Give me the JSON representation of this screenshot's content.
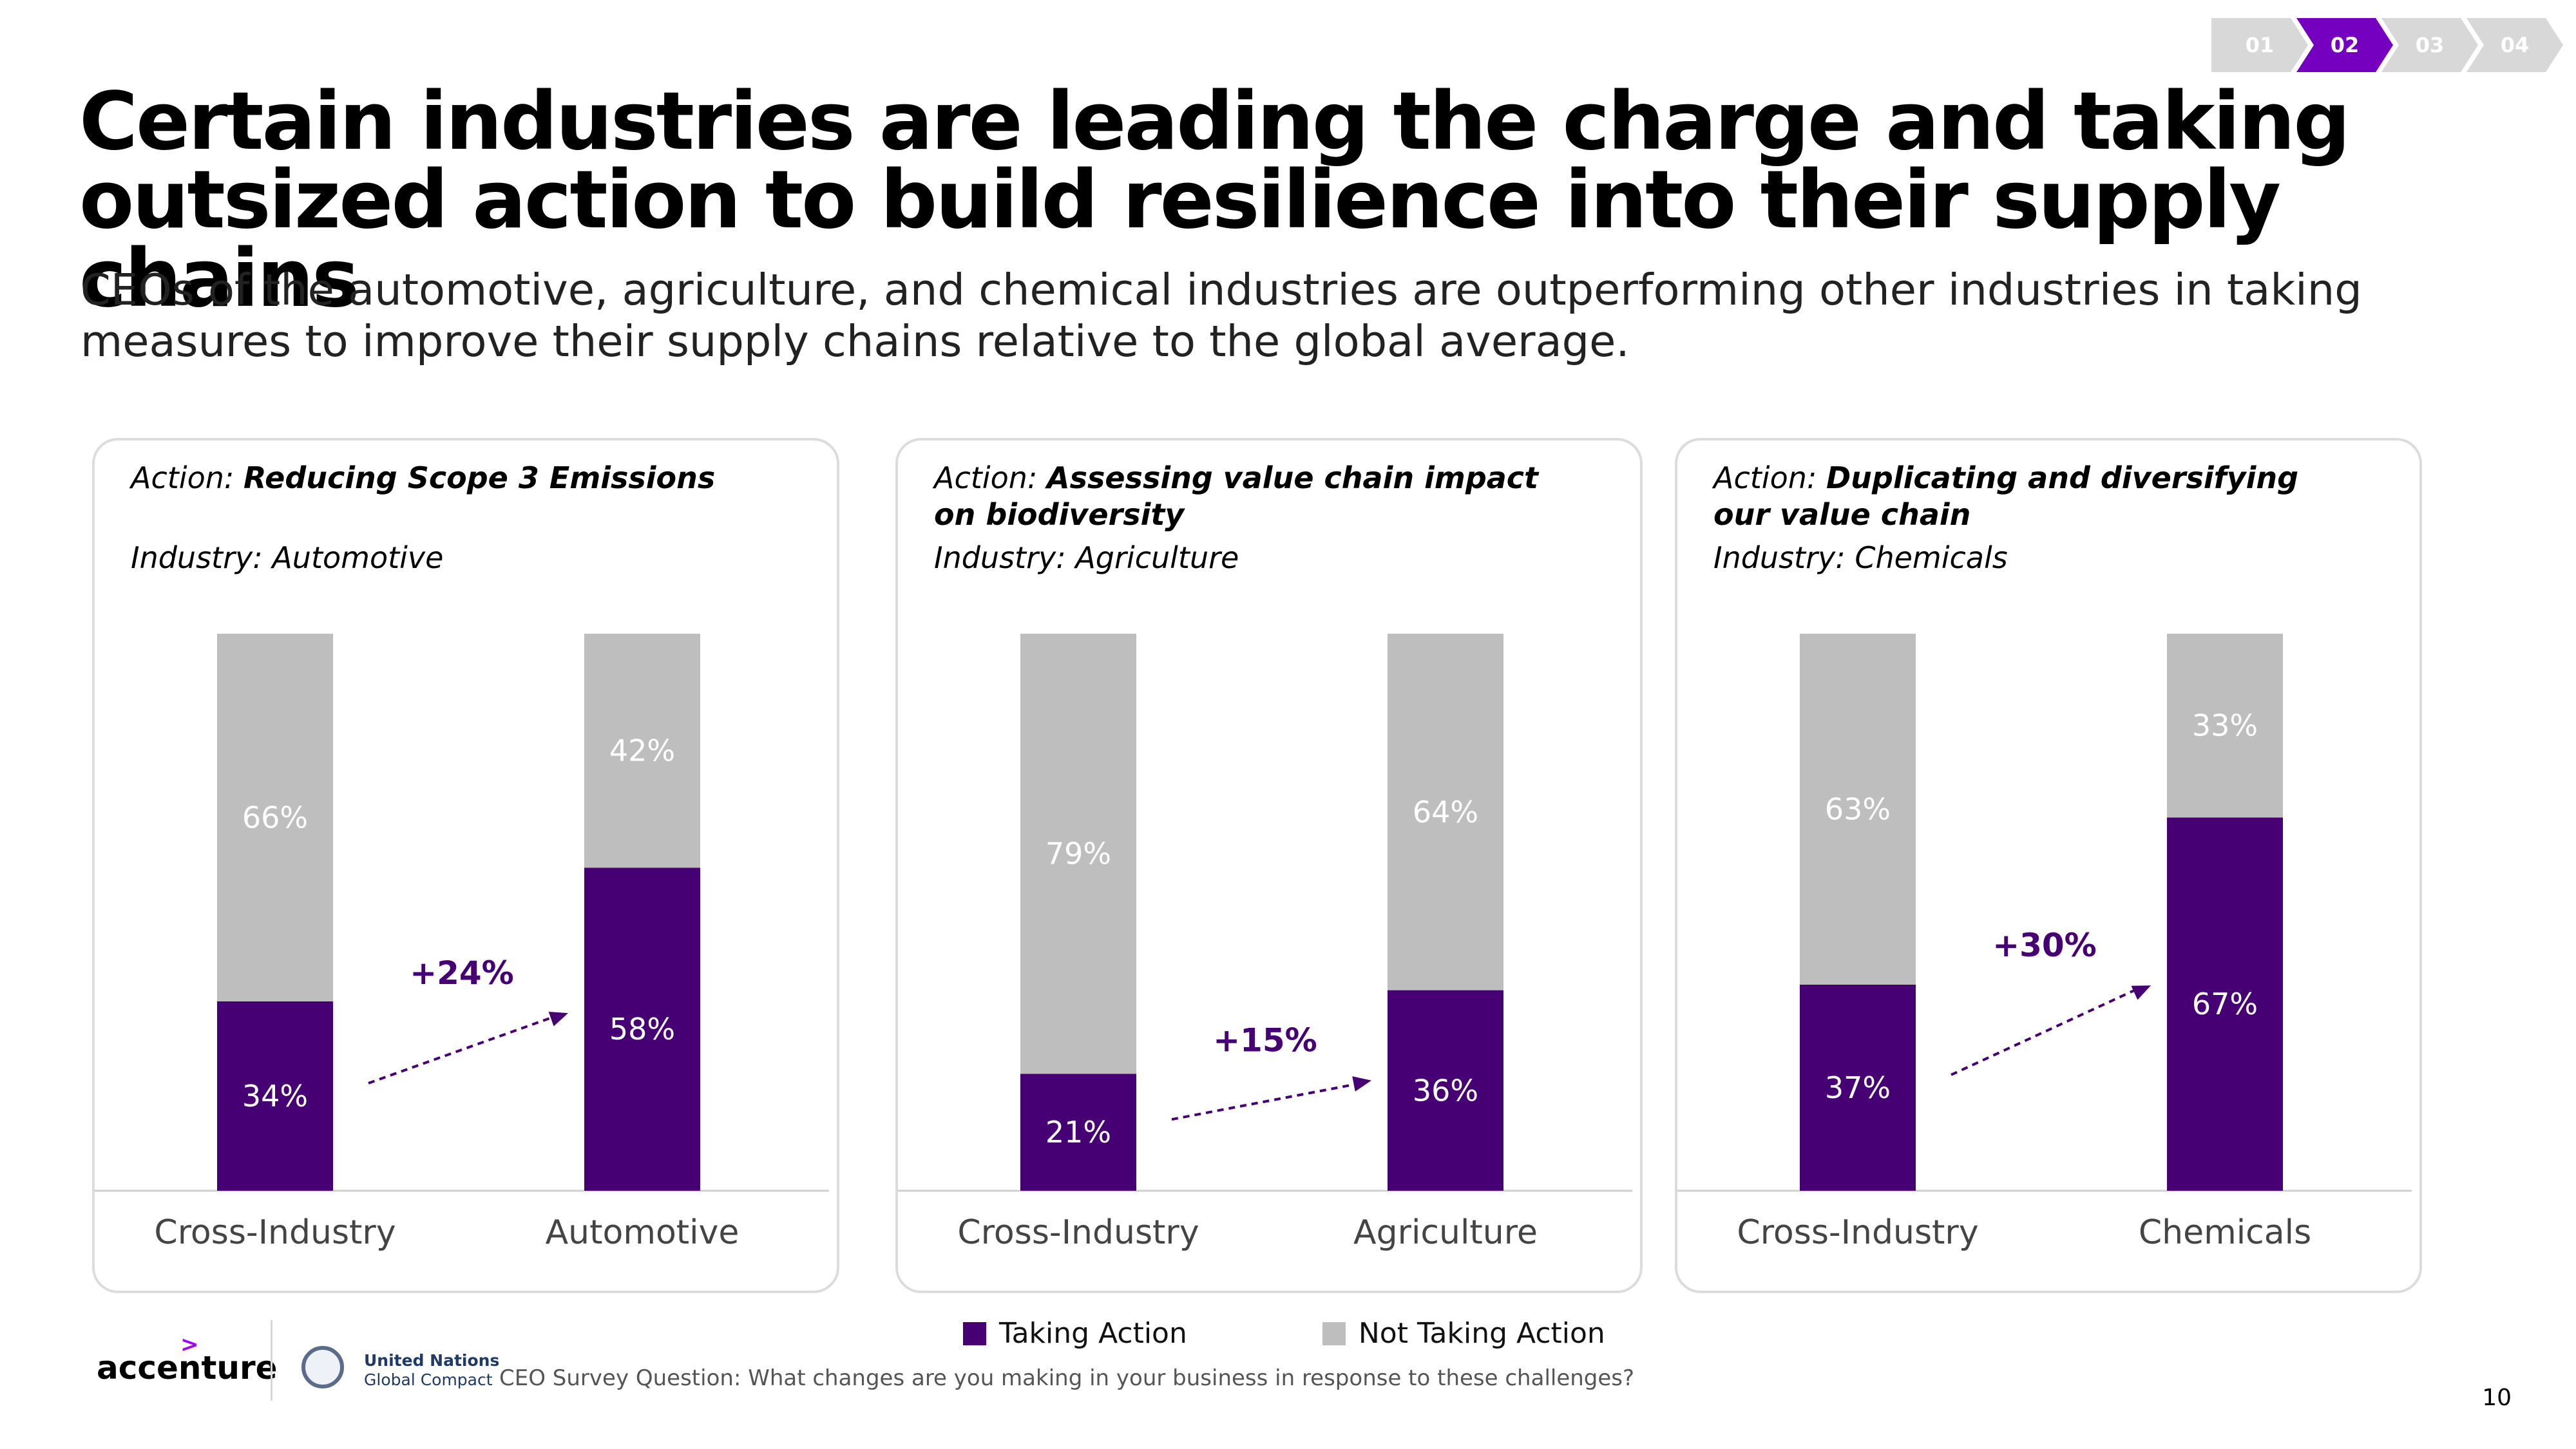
{
  "nav": {
    "steps": [
      "01",
      "02",
      "03",
      "04"
    ],
    "active_index": 1
  },
  "title": "Certain industries are leading the charge and taking outsized action to build resilience into their supply chains",
  "subtitle": "CEOs of the automotive, agriculture, and chemical industries are outperforming other industries in taking measures to improve their supply chains relative to the global average.",
  "colors": {
    "taking": "#460073",
    "not_taking": "#bebebe",
    "accent": "#7500c0"
  },
  "chart_data": [
    {
      "type": "bar",
      "stacked": true,
      "action_prefix": "Action:",
      "action": "Reducing Scope 3 Emissions",
      "industry_label": "Industry: Automotive",
      "categories": [
        "Cross-Industry",
        "Automotive"
      ],
      "series": [
        {
          "name": "Taking Action",
          "values": [
            34,
            58
          ],
          "labels": [
            "34%",
            "58%"
          ]
        },
        {
          "name": "Not Taking Action",
          "values": [
            66,
            42
          ],
          "labels": [
            "66%",
            "42%"
          ]
        }
      ],
      "delta_label": "+24%",
      "ylim": [
        0,
        100
      ]
    },
    {
      "type": "bar",
      "stacked": true,
      "action_prefix": "Action:",
      "action": "Assessing value chain impact on biodiversity",
      "industry_label": "Industry: Agriculture",
      "categories": [
        "Cross-Industry",
        "Agriculture"
      ],
      "series": [
        {
          "name": "Taking Action",
          "values": [
            21,
            36
          ],
          "labels": [
            "21%",
            "36%"
          ]
        },
        {
          "name": "Not Taking Action",
          "values": [
            79,
            64
          ],
          "labels": [
            "79%",
            "64%"
          ]
        }
      ],
      "delta_label": "+15%",
      "ylim": [
        0,
        100
      ]
    },
    {
      "type": "bar",
      "stacked": true,
      "action_prefix": "Action:",
      "action": "Duplicating and diversifying our value chain",
      "industry_label": "Industry: Chemicals",
      "categories": [
        "Cross-Industry",
        "Chemicals"
      ],
      "series": [
        {
          "name": "Taking Action",
          "values": [
            37,
            67
          ],
          "labels": [
            "37%",
            "67%"
          ]
        },
        {
          "name": "Not Taking Action",
          "values": [
            63,
            33
          ],
          "labels": [
            "63%",
            "33%"
          ]
        }
      ],
      "delta_label": "+30%",
      "ylim": [
        0,
        100
      ]
    }
  ],
  "legend": {
    "taking": "Taking Action",
    "not_taking": "Not Taking Action"
  },
  "footer": {
    "brand": "accenture",
    "un_line1": "United Nations",
    "un_line2": "Global Compact",
    "source": "CEO Survey Question: What changes are you making in your business in response to these challenges?",
    "page_number": "10"
  }
}
